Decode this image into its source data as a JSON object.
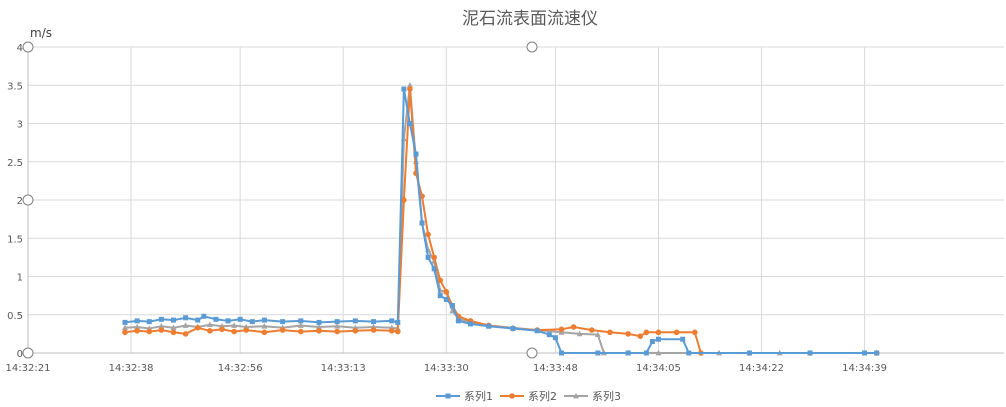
{
  "chart_data": {
    "type": "line",
    "title": "泥石流表面流速仪",
    "ylabel": "m/s",
    "xlabel": "",
    "ylim": [
      0,
      4
    ],
    "yticks": [
      "0",
      "0.5",
      "1",
      "1.5",
      "2",
      "2.5",
      "3",
      "3.5",
      "4"
    ],
    "xticks": [
      "14:32:21",
      "14:32:38",
      "14:32:56",
      "14:33:13",
      "14:33:30",
      "14:33:48",
      "14:34:05",
      "14:34:22",
      "14:34:39"
    ],
    "grid": true,
    "legend_position": "bottom",
    "series": [
      {
        "name": "系列1",
        "color": "#5b9bd5",
        "marker": "square",
        "points": [
          [
            "14:32:37",
            0.4
          ],
          [
            "14:32:39",
            0.42
          ],
          [
            "14:32:41",
            0.41
          ],
          [
            "14:32:43",
            0.44
          ],
          [
            "14:32:45",
            0.43
          ],
          [
            "14:32:47",
            0.46
          ],
          [
            "14:32:49",
            0.43
          ],
          [
            "14:32:50",
            0.48
          ],
          [
            "14:32:52",
            0.44
          ],
          [
            "14:32:54",
            0.42
          ],
          [
            "14:32:56",
            0.44
          ],
          [
            "14:32:58",
            0.41
          ],
          [
            "14:33:00",
            0.43
          ],
          [
            "14:33:03",
            0.41
          ],
          [
            "14:33:06",
            0.42
          ],
          [
            "14:33:09",
            0.4
          ],
          [
            "14:33:12",
            0.41
          ],
          [
            "14:33:15",
            0.42
          ],
          [
            "14:33:18",
            0.41
          ],
          [
            "14:33:21",
            0.42
          ],
          [
            "14:33:22",
            0.4
          ],
          [
            "14:33:23",
            3.45
          ],
          [
            "14:33:24",
            3.0
          ],
          [
            "14:33:25",
            2.6
          ],
          [
            "14:33:26",
            1.7
          ],
          [
            "14:33:27",
            1.25
          ],
          [
            "14:33:28",
            1.1
          ],
          [
            "14:33:29",
            0.75
          ],
          [
            "14:33:30",
            0.7
          ],
          [
            "14:33:31",
            0.62
          ],
          [
            "14:33:32",
            0.42
          ],
          [
            "14:33:34",
            0.38
          ],
          [
            "14:33:37",
            0.35
          ],
          [
            "14:33:41",
            0.32
          ],
          [
            "14:33:45",
            0.29
          ],
          [
            "14:33:47",
            0.24
          ],
          [
            "14:33:48",
            0.2
          ],
          [
            "14:33:49",
            0.0
          ],
          [
            "14:33:55",
            0.0
          ],
          [
            "14:34:00",
            0.0
          ],
          [
            "14:34:03",
            0.0
          ],
          [
            "14:34:04",
            0.15
          ],
          [
            "14:34:05",
            0.18
          ],
          [
            "14:34:09",
            0.18
          ],
          [
            "14:34:10",
            0.0
          ],
          [
            "14:34:20",
            0.0
          ],
          [
            "14:34:30",
            0.0
          ],
          [
            "14:34:39",
            0.0
          ],
          [
            "14:34:41",
            0.0
          ]
        ]
      },
      {
        "name": "系列2",
        "color": "#ed7d31",
        "marker": "circle",
        "points": [
          [
            "14:32:37",
            0.27
          ],
          [
            "14:32:39",
            0.29
          ],
          [
            "14:32:41",
            0.28
          ],
          [
            "14:32:43",
            0.3
          ],
          [
            "14:32:45",
            0.27
          ],
          [
            "14:32:47",
            0.25
          ],
          [
            "14:32:49",
            0.33
          ],
          [
            "14:32:51",
            0.29
          ],
          [
            "14:32:53",
            0.31
          ],
          [
            "14:32:55",
            0.28
          ],
          [
            "14:32:57",
            0.3
          ],
          [
            "14:33:00",
            0.27
          ],
          [
            "14:33:03",
            0.3
          ],
          [
            "14:33:06",
            0.28
          ],
          [
            "14:33:09",
            0.29
          ],
          [
            "14:33:12",
            0.28
          ],
          [
            "14:33:15",
            0.29
          ],
          [
            "14:33:18",
            0.3
          ],
          [
            "14:33:21",
            0.29
          ],
          [
            "14:33:22",
            0.28
          ],
          [
            "14:33:23",
            2.0
          ],
          [
            "14:33:24",
            3.45
          ],
          [
            "14:33:25",
            2.35
          ],
          [
            "14:33:26",
            2.05
          ],
          [
            "14:33:27",
            1.55
          ],
          [
            "14:33:28",
            1.25
          ],
          [
            "14:33:29",
            0.95
          ],
          [
            "14:33:30",
            0.8
          ],
          [
            "14:33:31",
            0.62
          ],
          [
            "14:33:32",
            0.48
          ],
          [
            "14:33:34",
            0.42
          ],
          [
            "14:33:37",
            0.36
          ],
          [
            "14:33:41",
            0.32
          ],
          [
            "14:33:45",
            0.3
          ],
          [
            "14:33:49",
            0.31
          ],
          [
            "14:33:51",
            0.34
          ],
          [
            "14:33:54",
            0.3
          ],
          [
            "14:33:57",
            0.27
          ],
          [
            "14:34:00",
            0.25
          ],
          [
            "14:34:02",
            0.22
          ],
          [
            "14:34:03",
            0.27
          ],
          [
            "14:34:05",
            0.27
          ],
          [
            "14:34:08",
            0.27
          ],
          [
            "14:34:11",
            0.27
          ],
          [
            "14:34:12",
            0.0
          ],
          [
            "14:34:20",
            0.0
          ],
          [
            "14:34:30",
            0.0
          ],
          [
            "14:34:41",
            0.0
          ]
        ]
      },
      {
        "name": "系列3",
        "color": "#a5a5a5",
        "marker": "triangle",
        "points": [
          [
            "14:32:37",
            0.33
          ],
          [
            "14:32:39",
            0.34
          ],
          [
            "14:32:41",
            0.32
          ],
          [
            "14:32:43",
            0.35
          ],
          [
            "14:32:45",
            0.33
          ],
          [
            "14:32:47",
            0.36
          ],
          [
            "14:32:49",
            0.34
          ],
          [
            "14:32:51",
            0.37
          ],
          [
            "14:32:53",
            0.35
          ],
          [
            "14:32:55",
            0.36
          ],
          [
            "14:32:57",
            0.34
          ],
          [
            "14:33:00",
            0.35
          ],
          [
            "14:33:03",
            0.33
          ],
          [
            "14:33:06",
            0.36
          ],
          [
            "14:33:09",
            0.34
          ],
          [
            "14:33:12",
            0.35
          ],
          [
            "14:33:15",
            0.33
          ],
          [
            "14:33:18",
            0.34
          ],
          [
            "14:33:21",
            0.33
          ],
          [
            "14:33:22",
            0.32
          ],
          [
            "14:33:23",
            2.8
          ],
          [
            "14:33:24",
            3.5
          ],
          [
            "14:33:25",
            2.5
          ],
          [
            "14:33:26",
            1.7
          ],
          [
            "14:33:27",
            1.35
          ],
          [
            "14:33:28",
            1.2
          ],
          [
            "14:33:29",
            0.82
          ],
          [
            "14:33:30",
            0.8
          ],
          [
            "14:33:31",
            0.55
          ],
          [
            "14:33:32",
            0.45
          ],
          [
            "14:33:34",
            0.4
          ],
          [
            "14:33:37",
            0.36
          ],
          [
            "14:33:41",
            0.33
          ],
          [
            "14:33:45",
            0.3
          ],
          [
            "14:33:49",
            0.27
          ],
          [
            "14:33:52",
            0.25
          ],
          [
            "14:33:55",
            0.24
          ],
          [
            "14:33:56",
            0.0
          ],
          [
            "14:34:00",
            0.0
          ],
          [
            "14:34:05",
            0.0
          ],
          [
            "14:34:15",
            0.0
          ],
          [
            "14:34:25",
            0.0
          ],
          [
            "14:34:41",
            0.0
          ]
        ]
      }
    ]
  }
}
